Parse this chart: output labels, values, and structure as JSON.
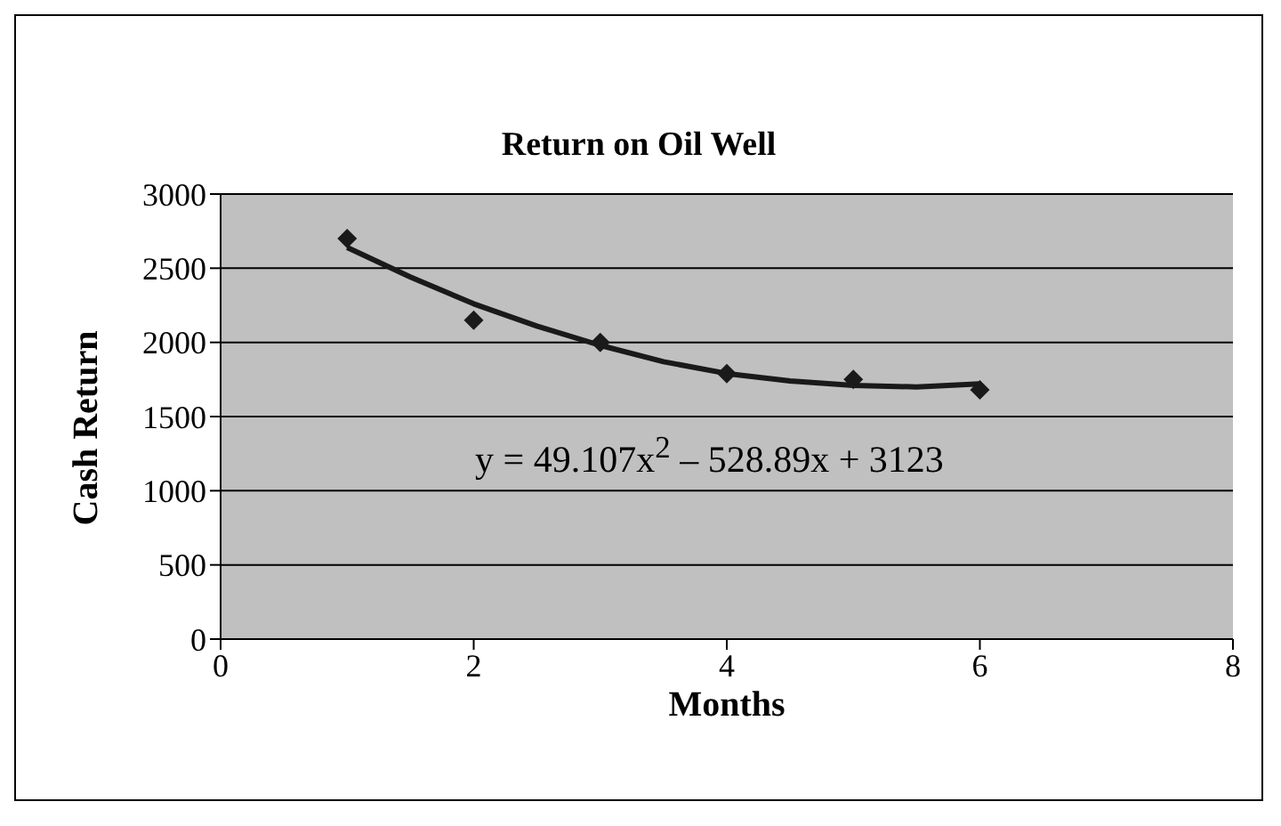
{
  "chart_data": {
    "type": "scatter",
    "title": "Return on Oil Well",
    "xlabel": "Months",
    "ylabel": "Cash Return",
    "xlim": [
      0,
      8
    ],
    "xticks": [
      0,
      2,
      4,
      6,
      8
    ],
    "ylim": [
      0,
      3000
    ],
    "yticks": [
      0,
      500,
      1000,
      1500,
      2000,
      2500,
      3000
    ],
    "grid": "y",
    "legend": false,
    "marker": "diamond",
    "series": [
      {
        "color": "#1a1a1a",
        "x": [
          1,
          2,
          3,
          4,
          5,
          6
        ],
        "values": [
          2700,
          2150,
          2000,
          1790,
          1750,
          1680
        ]
      },
      {
        "type": "line",
        "color": "#1a1a1a",
        "marker": "none",
        "x": [
          1,
          1.5,
          2,
          2.5,
          3,
          3.5,
          4,
          4.5,
          5,
          5.5,
          6
        ],
        "values": [
          2640,
          2440,
          2260,
          2110,
          1980,
          1870,
          1790,
          1740,
          1710,
          1700,
          1720
        ]
      }
    ],
    "annotations": [
      "y =  49.107x$^{2}$ – 528.89x + 3123"
    ]
  }
}
